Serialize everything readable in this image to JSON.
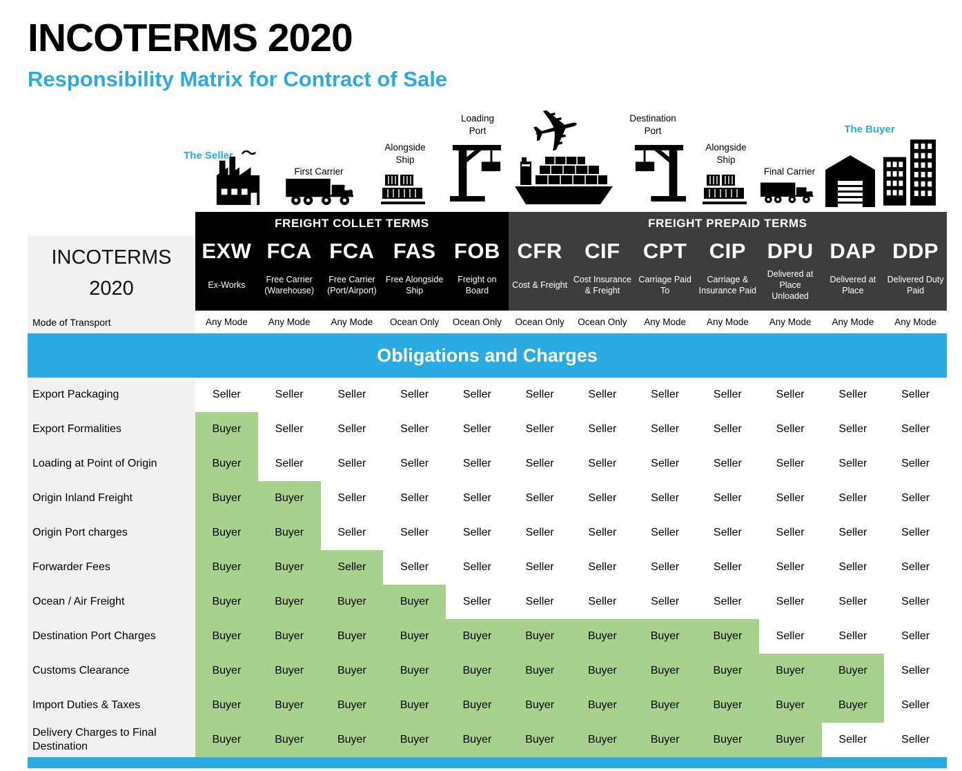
{
  "title": "INCOTERMS 2020",
  "subtitle": "Responsibility Matrix for Contract of Sale",
  "journey": {
    "seller": "The Seller",
    "first_carrier": "First Carrier",
    "alongside_ship_origin": "Alongside Ship",
    "loading_port": "Loading Port",
    "destination_port": "Destination Port",
    "alongside_ship_destination": "Alongside Ship",
    "final_carrier": "Final Carrier",
    "buyer": "The Buyer",
    "plane_glyph": "✈"
  },
  "chart_data": {
    "type": "table",
    "title": "INCOTERMS 2020 — Responsibility Matrix for Contract of Sale",
    "corner_title": "INCOTERMS 2020",
    "group_headers": {
      "collect": "FREIGHT COLLET TERMS",
      "prepaid": "FREIGHT  PREPAID TERMS"
    },
    "mode_label": "Mode of Transport",
    "band_title": "Obligations and Charges",
    "columns": [
      {
        "code": "EXW",
        "name": "Ex-Works",
        "mode": "Any Mode",
        "group": "collect"
      },
      {
        "code": "FCA",
        "name": "Free Carrier (Warehouse)",
        "mode": "Any Mode",
        "group": "collect"
      },
      {
        "code": "FCA",
        "name": "Free Carrier (Port/Airport)",
        "mode": "Any Mode",
        "group": "collect"
      },
      {
        "code": "FAS",
        "name": "Free Alongside Ship",
        "mode": "Ocean Only",
        "group": "collect"
      },
      {
        "code": "FOB",
        "name": "Freight on Board",
        "mode": "Ocean Only",
        "group": "collect"
      },
      {
        "code": "CFR",
        "name": "Cost & Freight",
        "mode": "Ocean Only",
        "group": "prepaid"
      },
      {
        "code": "CIF",
        "name": "Cost Insurance & Freight",
        "mode": "Ocean Only",
        "group": "prepaid"
      },
      {
        "code": "CPT",
        "name": "Carriage Paid To",
        "mode": "Any Mode",
        "group": "prepaid"
      },
      {
        "code": "CIP",
        "name": "Carriage & Insurance Paid",
        "mode": "Any Mode",
        "group": "prepaid"
      },
      {
        "code": "DPU",
        "name": "Delivered at Place Unloaded",
        "mode": "Any Mode",
        "group": "prepaid"
      },
      {
        "code": "DAP",
        "name": "Delivered at Place",
        "mode": "Any Mode",
        "group": "prepaid"
      },
      {
        "code": "DDP",
        "name": "Delivered Duty Paid",
        "mode": "Any Mode",
        "group": "prepaid"
      }
    ],
    "rows": [
      {
        "label": "Export Packaging",
        "green_through": 0,
        "cells": [
          "Seller",
          "Seller",
          "Seller",
          "Seller",
          "Seller",
          "Seller",
          "Seller",
          "Seller",
          "Seller",
          "Seller",
          "Seller",
          "Seller"
        ]
      },
      {
        "label": "Export Formalities",
        "green_through": 1,
        "cells": [
          "Buyer",
          "Seller",
          "Seller",
          "Seller",
          "Seller",
          "Seller",
          "Seller",
          "Seller",
          "Seller",
          "Seller",
          "Seller",
          "Seller"
        ]
      },
      {
        "label": "Loading at Point of Origin",
        "green_through": 1,
        "cells": [
          "Buyer",
          "Seller",
          "Seller",
          "Seller",
          "Seller",
          "Seller",
          "Seller",
          "Seller",
          "Seller",
          "Seller",
          "Seller",
          "Seller"
        ]
      },
      {
        "label": "Origin Inland Freight",
        "green_through": 2,
        "cells": [
          "Buyer",
          "Buyer",
          "Seller",
          "Seller",
          "Seller",
          "Seller",
          "Seller",
          "Seller",
          "Seller",
          "Seller",
          "Seller",
          "Seller"
        ]
      },
      {
        "label": "Origin Port charges",
        "green_through": 2,
        "cells": [
          "Buyer",
          "Buyer",
          "Seller",
          "Seller",
          "Seller",
          "Seller",
          "Seller",
          "Seller",
          "Seller",
          "Seller",
          "Seller",
          "Seller"
        ]
      },
      {
        "label": "Forwarder Fees",
        "green_through": 3,
        "cells": [
          "Buyer",
          "Buyer",
          "Seller",
          "Seller",
          "Seller",
          "Seller",
          "Seller",
          "Seller",
          "Seller",
          "Seller",
          "Seller",
          "Seller"
        ]
      },
      {
        "label": "Ocean / Air Freight",
        "green_through": 4,
        "cells": [
          "Buyer",
          "Buyer",
          "Buyer",
          "Buyer",
          "Seller",
          "Seller",
          "Seller",
          "Seller",
          "Seller",
          "Seller",
          "Seller",
          "Seller"
        ]
      },
      {
        "label": "Destination Port Charges",
        "green_through": 9,
        "cells": [
          "Buyer",
          "Buyer",
          "Buyer",
          "Buyer",
          "Buyer",
          "Buyer",
          "Buyer",
          "Buyer",
          "Buyer",
          "Seller",
          "Seller",
          "Seller"
        ]
      },
      {
        "label": "Customs Clearance",
        "green_through": 11,
        "cells": [
          "Buyer",
          "Buyer",
          "Buyer",
          "Buyer",
          "Buyer",
          "Buyer",
          "Buyer",
          "Buyer",
          "Buyer",
          "Buyer",
          "Buyer",
          "Seller"
        ]
      },
      {
        "label": "Import Duties & Taxes",
        "green_through": 11,
        "cells": [
          "Buyer",
          "Buyer",
          "Buyer",
          "Buyer",
          "Buyer",
          "Buyer",
          "Buyer",
          "Buyer",
          "Buyer",
          "Buyer",
          "Buyer",
          "Seller"
        ]
      },
      {
        "label": "Delivery Charges to Final Destination",
        "green_through": 10,
        "cells": [
          "Buyer",
          "Buyer",
          "Buyer",
          "Buyer",
          "Buyer",
          "Buyer",
          "Buyer",
          "Buyer",
          "Buyer",
          "Buyer",
          "Seller",
          "Seller"
        ]
      }
    ]
  },
  "colors": {
    "accent": "#29ABE2",
    "green": "#A9D18E",
    "collect": "#000000",
    "prepaid": "#3D3D3D",
    "labelbg": "#F1F1F1"
  }
}
